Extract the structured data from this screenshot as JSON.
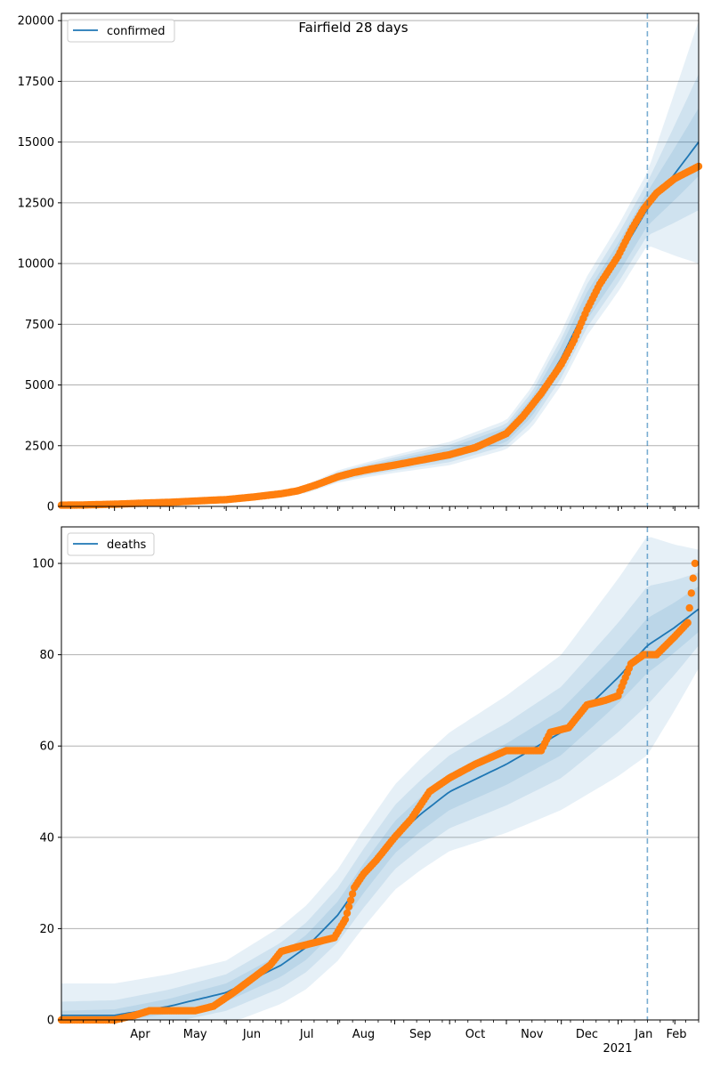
{
  "figure": {
    "title": "Fairfield 28 days",
    "colors": {
      "model_line": "#1f77b4",
      "observed_points": "#ff7f0e",
      "band": "#1f77b4",
      "forecast_line": "#1f77b4",
      "grid": "#b0b0b0"
    }
  },
  "x_axis": {
    "month_labels": [
      "Apr",
      "May",
      "Jun",
      "Jul",
      "Aug",
      "Sep",
      "Oct",
      "Nov",
      "Dec",
      "Jan",
      "Feb"
    ],
    "year_label": "2021",
    "range": [
      "2020-03-03",
      "2021-02-14"
    ],
    "forecast_start": "2021-01-17"
  },
  "chart_data": [
    {
      "type": "line",
      "name": "confirmed",
      "legend": "confirmed",
      "legend_position": "top-left",
      "grid": "horizontal",
      "ylim": [
        0,
        20300
      ],
      "yticks": [
        0,
        2500,
        5000,
        7500,
        10000,
        12500,
        15000,
        17500,
        20000
      ],
      "ytick_labels": [
        "0",
        "2500",
        "5000",
        "7500",
        "10000",
        "12500",
        "15000",
        "17500",
        "20000"
      ],
      "model_series": {
        "name": "confirmed",
        "x": [
          "2020-03-03",
          "2020-04-01",
          "2020-05-01",
          "2020-06-01",
          "2020-07-01",
          "2020-07-15",
          "2020-08-01",
          "2020-08-15",
          "2020-09-01",
          "2020-10-01",
          "2020-11-01",
          "2020-11-15",
          "2020-12-01",
          "2020-12-15",
          "2021-01-01",
          "2021-01-17",
          "2021-02-01",
          "2021-02-14"
        ],
        "y": [
          20,
          60,
          150,
          280,
          500,
          720,
          1230,
          1480,
          1750,
          2180,
          2950,
          4100,
          6100,
          8250,
          10200,
          12250,
          13700,
          15000
        ]
      },
      "band_widths": [
        {
          "x": [
            "2020-03-03",
            "2020-07-01",
            "2020-08-01",
            "2020-11-01",
            "2020-12-01",
            "2021-01-17",
            "2021-02-14"
          ],
          "w": [
            10,
            40,
            120,
            300,
            500,
            700,
            1400
          ]
        },
        {
          "x": [
            "2020-03-03",
            "2020-07-01",
            "2020-08-01",
            "2020-11-01",
            "2020-12-01",
            "2021-01-17",
            "2021-02-14"
          ],
          "w": [
            20,
            70,
            180,
            450,
            800,
            1100,
            2800
          ]
        },
        {
          "x": [
            "2020-03-03",
            "2020-07-01",
            "2020-08-01",
            "2020-11-01",
            "2020-12-01",
            "2021-01-17",
            "2021-02-14"
          ],
          "w": [
            30,
            100,
            250,
            600,
            1100,
            1500,
            5000
          ]
        }
      ],
      "observed_series": {
        "x": [
          "2020-03-03",
          "2020-03-15",
          "2020-04-01",
          "2020-04-15",
          "2020-05-01",
          "2020-05-15",
          "2020-06-01",
          "2020-06-15",
          "2020-07-01",
          "2020-07-10",
          "2020-07-20",
          "2020-08-01",
          "2020-08-10",
          "2020-08-20",
          "2020-09-01",
          "2020-09-15",
          "2020-10-01",
          "2020-10-15",
          "2020-11-01",
          "2020-11-10",
          "2020-11-20",
          "2020-12-01",
          "2020-12-08",
          "2020-12-15",
          "2020-12-22",
          "2021-01-01",
          "2021-01-08",
          "2021-01-15",
          "2021-01-22",
          "2021-02-01",
          "2021-02-14"
        ],
        "y": [
          50,
          60,
          90,
          130,
          170,
          220,
          280,
          380,
          520,
          640,
          880,
          1220,
          1400,
          1550,
          1700,
          1900,
          2130,
          2420,
          3000,
          3700,
          4650,
          5850,
          6850,
          8100,
          9150,
          10300,
          11350,
          12250,
          12900,
          13500,
          14000
        ]
      }
    },
    {
      "type": "line",
      "name": "deaths",
      "legend": "deaths",
      "legend_position": "top-left",
      "grid": "horizontal",
      "ylim": [
        0,
        108
      ],
      "yticks": [
        0,
        20,
        40,
        60,
        80,
        100
      ],
      "ytick_labels": [
        "0",
        "20",
        "40",
        "60",
        "80",
        "100"
      ],
      "model_series": {
        "name": "deaths",
        "x": [
          "2020-03-03",
          "2020-04-01",
          "2020-05-01",
          "2020-06-01",
          "2020-07-01",
          "2020-07-15",
          "2020-08-01",
          "2020-08-15",
          "2020-09-01",
          "2020-09-15",
          "2020-10-01",
          "2020-11-01",
          "2020-12-01",
          "2021-01-01",
          "2021-01-17",
          "2021-02-01",
          "2021-02-14"
        ],
        "y": [
          1,
          1,
          3,
          6,
          12,
          16,
          23,
          31,
          40,
          45,
          50,
          56,
          63,
          75,
          82,
          86,
          90
        ]
      },
      "band_widths": [
        {
          "x": [
            "2020-03-03",
            "2020-06-01",
            "2020-08-01",
            "2020-10-01",
            "2020-12-01",
            "2021-01-17",
            "2021-02-14"
          ],
          "w": [
            1,
            2,
            3,
            4,
            5,
            6,
            5
          ]
        },
        {
          "x": [
            "2020-03-03",
            "2020-06-01",
            "2020-08-01",
            "2020-10-01",
            "2020-12-01",
            "2021-01-17",
            "2021-02-14"
          ],
          "w": [
            3,
            4,
            6,
            8,
            10,
            13,
            8
          ]
        },
        {
          "x": [
            "2020-03-03",
            "2020-06-01",
            "2020-08-01",
            "2020-10-01",
            "2020-12-01",
            "2021-01-17",
            "2021-02-14"
          ],
          "w": [
            7,
            7,
            10,
            13,
            17,
            24,
            13
          ]
        }
      ],
      "observed_series": {
        "x": [
          "2020-03-03",
          "2020-04-01",
          "2020-04-12",
          "2020-04-20",
          "2020-05-01",
          "2020-05-15",
          "2020-05-25",
          "2020-06-05",
          "2020-06-15",
          "2020-06-25",
          "2020-07-01",
          "2020-07-10",
          "2020-07-20",
          "2020-07-30",
          "2020-08-05",
          "2020-08-10",
          "2020-08-15",
          "2020-08-22",
          "2020-09-01",
          "2020-09-10",
          "2020-09-20",
          "2020-10-01",
          "2020-10-15",
          "2020-11-01",
          "2020-11-20",
          "2020-11-25",
          "2020-12-05",
          "2020-12-15",
          "2020-12-25",
          "2021-01-01",
          "2021-01-08",
          "2021-01-15",
          "2021-01-22",
          "2021-02-01",
          "2021-02-08",
          "2021-02-12"
        ],
        "y": [
          0,
          0,
          1,
          2,
          2,
          2,
          3,
          6,
          9,
          12,
          15,
          16,
          17,
          18,
          22,
          29,
          32,
          35,
          40,
          44,
          50,
          53,
          56,
          59,
          59,
          63,
          64,
          69,
          70,
          71,
          78,
          80,
          80,
          84,
          87,
          100
        ]
      }
    }
  ]
}
